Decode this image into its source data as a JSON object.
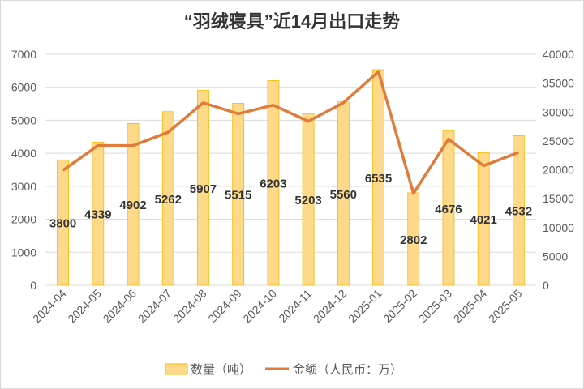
{
  "chart_data": {
    "type": "bar+line",
    "title": "“羽绒寝具”近14月出口走势",
    "categories": [
      "2024-04",
      "2024-05",
      "2024-06",
      "2024-07",
      "2024-08",
      "2024-09",
      "2024-10",
      "2024-11",
      "2024-12",
      "2025-01",
      "2025-02",
      "2025-03",
      "2025-04",
      "2025-05"
    ],
    "series": [
      {
        "name": "数量（吨）",
        "type": "bar",
        "axis": "left",
        "color": "#FFD98A",
        "edge": "#F5B800",
        "values": [
          3800,
          4339,
          4902,
          5262,
          5907,
          5515,
          6203,
          5203,
          5560,
          6535,
          2802,
          4676,
          4021,
          4532
        ]
      },
      {
        "name": "金额（人民币：万）",
        "type": "line",
        "axis": "right",
        "color": "#E07B39",
        "values": [
          19900,
          24200,
          24200,
          26500,
          31600,
          29700,
          31200,
          28400,
          31600,
          37000,
          15900,
          25300,
          20700,
          23000
        ]
      }
    ],
    "left_axis": {
      "ylim": [
        0,
        7000
      ],
      "ticks": [
        "0",
        "1000",
        "2000",
        "3000",
        "4000",
        "5000",
        "6000",
        "7000"
      ]
    },
    "right_axis": {
      "ylim": [
        0,
        40000
      ],
      "ticks": [
        "0",
        "5000",
        "10000",
        "15000",
        "20000",
        "25000",
        "30000",
        "35000",
        "40000"
      ]
    },
    "grid": true,
    "legend": "bottom"
  }
}
